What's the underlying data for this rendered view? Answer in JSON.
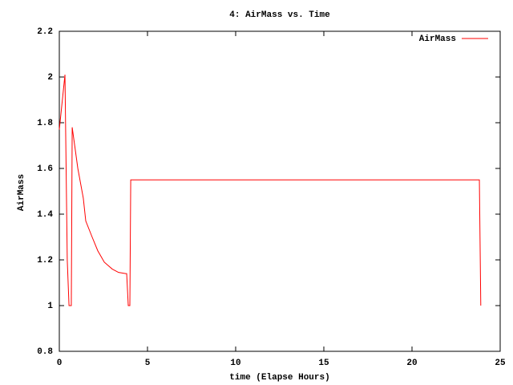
{
  "chart_data": {
    "type": "line",
    "title": "4: AirMass vs. Time",
    "x_label": "time (Elapse Hours)",
    "y_label": "AirMass",
    "x": [
      0,
      0.32,
      0.45,
      0.55,
      0.6,
      0.68,
      0.73,
      1.05,
      1.36,
      1.5,
      1.86,
      2.18,
      2.55,
      3.0,
      3.36,
      3.77,
      3.82,
      3.91,
      4.0,
      4.05,
      23.82,
      23.9
    ],
    "series": [
      {
        "name": "AirMass",
        "color": "#ff0000",
        "values": [
          1.77,
          2.01,
          1.2,
          1.0,
          1.0,
          1.0,
          1.78,
          1.6,
          1.47,
          1.37,
          1.3,
          1.24,
          1.19,
          1.16,
          1.145,
          1.14,
          1.14,
          1.0,
          1.0,
          1.55,
          1.55,
          1.0
        ]
      }
    ],
    "xlim": [
      0,
      25
    ],
    "xticks": [
      0,
      5,
      10,
      15,
      20,
      25
    ],
    "ylim": [
      0.8,
      2.2
    ],
    "yticks": [
      0.8,
      1,
      1.2,
      1.4,
      1.6,
      1.8,
      2,
      2.2
    ],
    "legend": "top-right"
  }
}
